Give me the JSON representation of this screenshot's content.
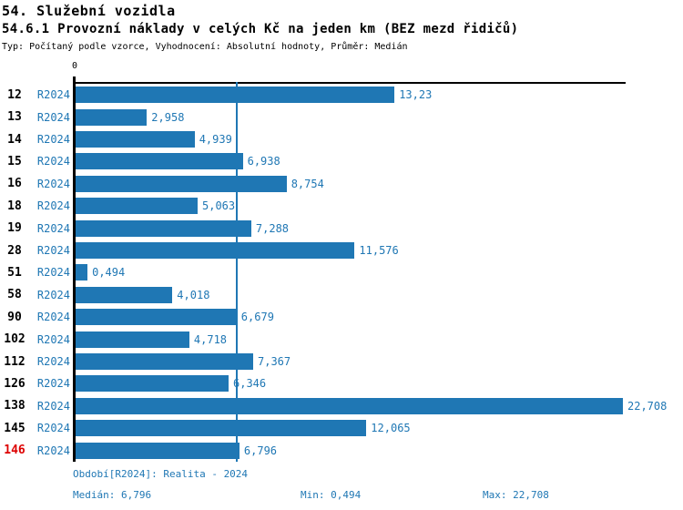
{
  "header": {
    "title1": "54. Služební vozidla",
    "title2": "54.6.1 Provozní náklady v celých Kč na jeden km (BEZ mezd řidičů)",
    "subtitle": "Typ: Počítaný podle vzorce, Vyhodnocení: Absolutní hodnoty, Průměr: Medián"
  },
  "chart_data": {
    "type": "bar",
    "orientation": "horizontal",
    "title": "54.6.1 Provozní náklady v celých Kč na jeden km (BEZ mezd řidičů)",
    "categories": [
      "12",
      "13",
      "14",
      "15",
      "16",
      "18",
      "19",
      "28",
      "51",
      "58",
      "90",
      "102",
      "112",
      "126",
      "138",
      "145",
      "146"
    ],
    "series": [
      {
        "name": "R2024",
        "values": [
          13.23,
          2.958,
          4.939,
          6.938,
          8.754,
          5.063,
          7.288,
          11.576,
          0.494,
          4.018,
          6.679,
          4.718,
          7.367,
          6.346,
          22.708,
          12.065,
          6.796
        ],
        "value_labels": [
          "13,23",
          "2,958",
          "4,939",
          "6,938",
          "8,754",
          "5,063",
          "7,288",
          "11,576",
          "0,494",
          "4,018",
          "6,679",
          "4,718",
          "7,367",
          "6,346",
          "22,708",
          "12,065",
          "6,796"
        ]
      }
    ],
    "series_label": "R2024",
    "axis": {
      "zero_label": "0",
      "xmin": 0,
      "xmax": 22.708,
      "grid": false
    },
    "median_value": 6.796,
    "highlight_category": "146",
    "legend_position": "none",
    "colors": {
      "bar": "#1F77B4",
      "median_line": "#1F77B4",
      "highlight_label": "#DD0000"
    }
  },
  "footer": {
    "period": "Období[R2024]: Realita - 2024",
    "median": "Medián: 6,796",
    "min": "Min: 0,494",
    "max": "Max: 22,708"
  }
}
